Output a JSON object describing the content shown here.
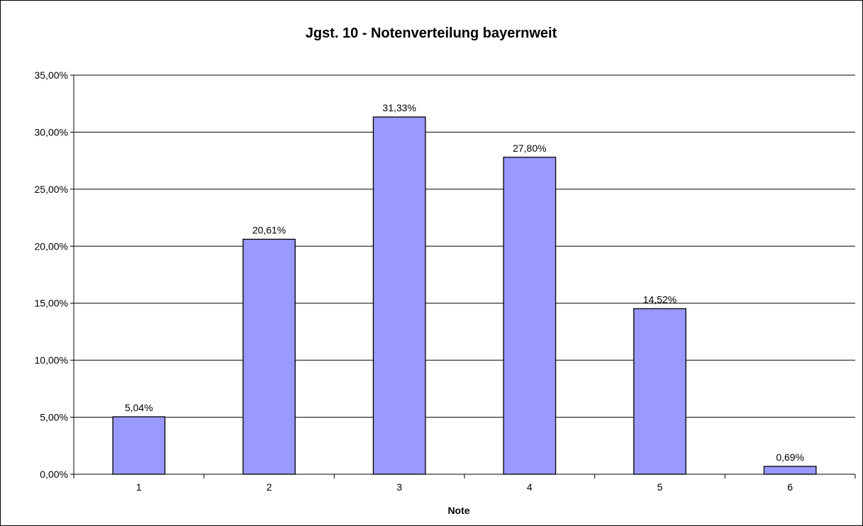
{
  "chart_data": {
    "type": "bar",
    "title": "Jgst. 10 - Notenverteilung bayernweit",
    "xlabel": "Note",
    "ylabel": "",
    "categories": [
      "1",
      "2",
      "3",
      "4",
      "5",
      "6"
    ],
    "values": [
      5.04,
      20.61,
      31.33,
      27.8,
      14.52,
      0.69
    ],
    "data_labels": [
      "5,04%",
      "20,61%",
      "31,33%",
      "27,80%",
      "14,52%",
      "0,69%"
    ],
    "ylim": [
      0,
      35
    ],
    "yticks": [
      0,
      5,
      10,
      15,
      20,
      25,
      30,
      35
    ],
    "ytick_labels": [
      "0,00%",
      "5,00%",
      "10,00%",
      "15,00%",
      "20,00%",
      "25,00%",
      "30,00%",
      "35,00%"
    ],
    "grid": true,
    "legend": "none",
    "colors": {
      "bar_fill": "#9999ff",
      "bar_stroke": "#000000",
      "grid": "#000000",
      "background": "#ffffff"
    }
  }
}
